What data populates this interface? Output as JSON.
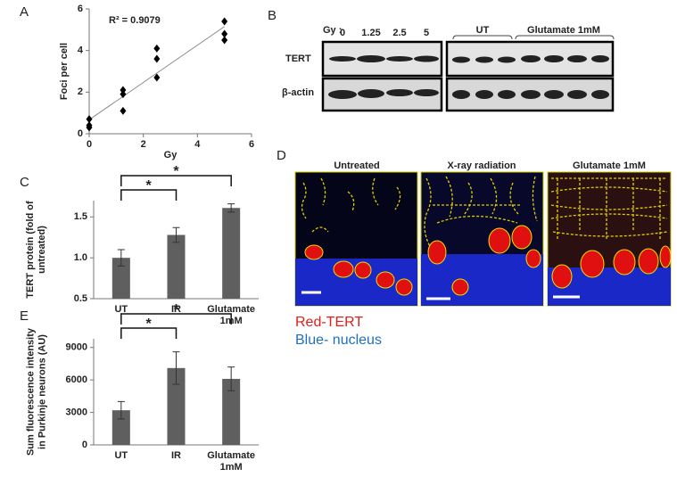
{
  "panels": [
    "A",
    "B",
    "C",
    "D",
    "E"
  ],
  "chart_data": [
    {
      "type": "scatter",
      "x": [
        0,
        0,
        0,
        1.25,
        1.25,
        1.25,
        2.5,
        2.5,
        2.5,
        5,
        5,
        5
      ],
      "values": [
        0.7,
        0.4,
        0.3,
        2.1,
        1.9,
        1.1,
        4.1,
        3.6,
        2.7,
        5.4,
        4.8,
        4.5
      ],
      "color": "#000000",
      "xlim": [
        0,
        6
      ],
      "xticks": [
        0,
        2,
        4,
        6
      ],
      "ylim": [
        0,
        6
      ],
      "yticks": [
        0,
        2,
        4,
        6
      ],
      "xlabel": "Gy",
      "ylabel": "Foci per cell",
      "annotation": "R² = 0.9079",
      "trendline": true
    },
    {
      "type": "bar",
      "categories": [
        "UT",
        "IR",
        "Glutamate 1mM"
      ],
      "values": [
        1.0,
        1.28,
        1.61
      ],
      "errors": [
        0.1,
        0.09,
        0.05
      ],
      "color": "#5f5f5f",
      "ylim": [
        0.5,
        1.7
      ],
      "yticks": [
        {
          "value": 0.5,
          "label": "0.5"
        },
        {
          "value": 1.0,
          "label": "1.0"
        },
        {
          "value": 1.5,
          "label": "1.5"
        }
      ],
      "ylabel": "TERT protein (fold of untreated)",
      "significance": [
        {
          "pair": [
            "UT",
            "IR"
          ],
          "label": "*"
        },
        {
          "pair": [
            "UT",
            "Glutamate 1mM"
          ],
          "label": "*"
        }
      ]
    },
    {
      "type": "bar",
      "categories": [
        "UT",
        "IR",
        "Glutamate 1mM"
      ],
      "values": [
        3200,
        7100,
        6100
      ],
      "errors": [
        800,
        1500,
        1100
      ],
      "color": "#5f5f5f",
      "ylim": [
        0,
        9800
      ],
      "yticks": [
        0,
        3000,
        6000,
        9000
      ],
      "ylabel": "Sum fluorescence intensity in Purkinje neurons (AU)",
      "significance": [
        {
          "pair": [
            "UT",
            "IR"
          ],
          "label": "*"
        },
        {
          "pair": [
            "UT",
            "Glutamate 1mM"
          ],
          "label": "*"
        }
      ]
    }
  ],
  "blot": {
    "dose_label": "Gy :",
    "doses": [
      "0",
      "1.25",
      "2.5",
      "5"
    ],
    "groups": [
      "UT",
      "Glutamate 1mM"
    ],
    "rows": [
      "TERT",
      "β-actin"
    ]
  },
  "images": {
    "titles": [
      "Untreated",
      "X-ray radiation",
      "Glutamate 1mM"
    ],
    "legend": [
      "Red-TERT",
      "Blue- nucleus"
    ]
  }
}
